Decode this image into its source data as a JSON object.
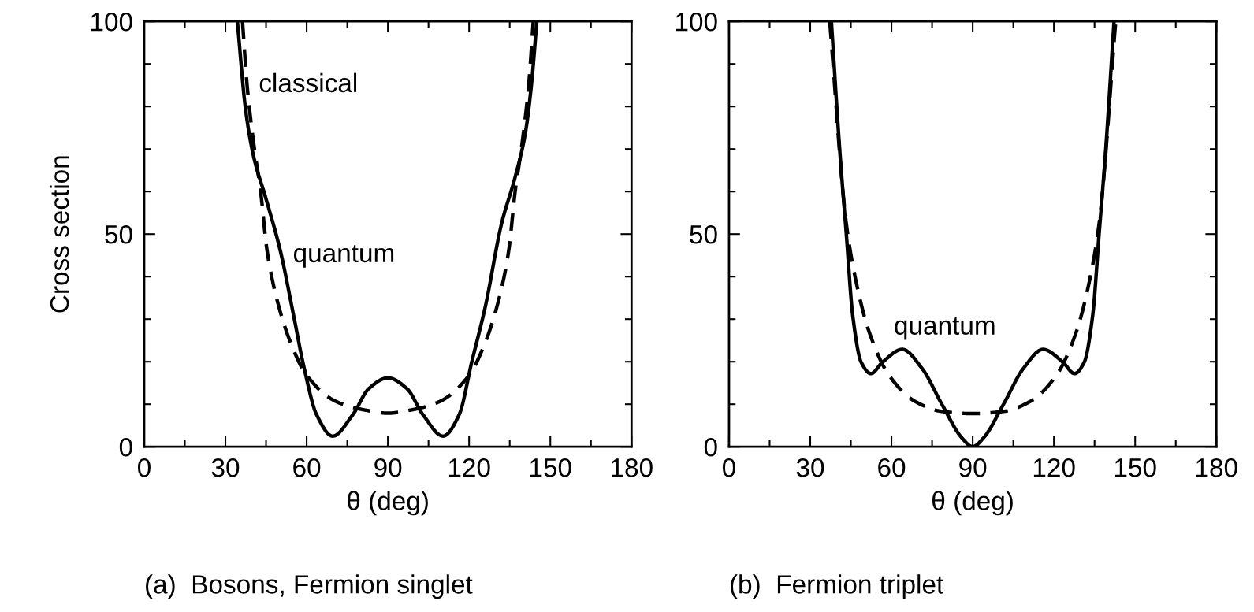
{
  "chart_data": [
    {
      "type": "line",
      "title": "(a)  Bosons, Fermion singlet",
      "xlabel": "θ (deg)",
      "ylabel": "Cross section",
      "xlim": [
        0,
        180
      ],
      "ylim": [
        0,
        100
      ],
      "xticks": [
        0,
        {
          "value": 15,
          "label": null
        },
        30,
        {
          "value": 45,
          "label": null
        },
        60,
        {
          "value": 75,
          "label": null
        },
        90,
        {
          "value": 105,
          "label": null
        },
        120,
        {
          "value": 135,
          "label": null
        },
        150,
        {
          "value": 165,
          "label": null
        },
        180
      ],
      "yticks": [
        0,
        {
          "value": 10,
          "label": null
        },
        {
          "value": 20,
          "label": null
        },
        {
          "value": 30,
          "label": null
        },
        {
          "value": 40,
          "label": null
        },
        50,
        {
          "value": 60,
          "label": null
        },
        {
          "value": 70,
          "label": null
        },
        {
          "value": 80,
          "label": null
        },
        {
          "value": 90,
          "label": null
        },
        100
      ],
      "grid": false,
      "legend": false,
      "annotations": [
        "classical",
        "quantum"
      ],
      "series": [
        {
          "color": "#000000",
          "line_style": "solid",
          "x": [
            34.4,
            37.5,
            40.5,
            44.8,
            50.3,
            55.2,
            58.9,
            63.7,
            69.6,
            77,
            83,
            90,
            97,
            103,
            110.4,
            116.3,
            121,
            126,
            132,
            137,
            140.7,
            143,
            145
          ],
          "values": [
            100,
            79,
            68,
            58.7,
            46,
            30.8,
            19,
            7.5,
            2.5,
            7.5,
            13.7,
            16.2,
            13.7,
            7.5,
            2.5,
            7.5,
            20,
            33,
            52.5,
            63.4,
            73.5,
            85,
            100
          ]
        },
        {
          "color": "#000000",
          "line_style": "dashed",
          "x": [
            36.3,
            38,
            40.5,
            43,
            45.4,
            49,
            54,
            60,
            71,
            81,
            90,
            99,
            109,
            120,
            126,
            131,
            134.6,
            137,
            139.5,
            142,
            143.7
          ],
          "values": [
            100,
            85,
            71,
            60,
            46,
            34.7,
            24.6,
            16.8,
            10.6,
            8.7,
            7.9,
            8.7,
            10.6,
            16.8,
            24.6,
            34.7,
            46,
            60,
            71,
            85,
            100
          ]
        }
      ]
    },
    {
      "type": "line",
      "title": "(b)  Fermion triplet",
      "xlabel": "θ (deg)",
      "xlim": [
        0,
        180
      ],
      "ylim": [
        0,
        100
      ],
      "xticks": [
        0,
        {
          "value": 15,
          "label": null
        },
        30,
        {
          "value": 45,
          "label": null
        },
        60,
        {
          "value": 75,
          "label": null
        },
        90,
        {
          "value": 105,
          "label": null
        },
        120,
        {
          "value": 135,
          "label": null
        },
        150,
        {
          "value": 165,
          "label": null
        },
        180
      ],
      "yticks": [
        0,
        {
          "value": 10,
          "label": null
        },
        {
          "value": 20,
          "label": null
        },
        {
          "value": 30,
          "label": null
        },
        {
          "value": 40,
          "label": null
        },
        50,
        {
          "value": 60,
          "label": null
        },
        {
          "value": 70,
          "label": null
        },
        {
          "value": 80,
          "label": null
        },
        {
          "value": 90,
          "label": null
        },
        100
      ],
      "grid": false,
      "legend": false,
      "annotations": [
        "quantum"
      ],
      "series": [
        {
          "color": "#000000",
          "line_style": "solid",
          "x": [
            37.8,
            40.9,
            43.3,
            45.7,
            48.8,
            52.4,
            56.7,
            64,
            71.3,
            78.7,
            86,
            90,
            94,
            101.3,
            108.7,
            116,
            123.3,
            127.6,
            131.2,
            134.3,
            136.7,
            139.1,
            142.2
          ],
          "values": [
            100,
            69.6,
            50.2,
            30.8,
            19.9,
            17.2,
            19.9,
            22.9,
            18.4,
            9.9,
            2.1,
            0,
            2.1,
            9.9,
            18.4,
            22.9,
            19.9,
            17.2,
            19.9,
            30.8,
            50.2,
            69.6,
            100
          ]
        },
        {
          "color": "#000000",
          "line_style": "dashed",
          "x": [
            37.2,
            43.3,
            47,
            51.8,
            59.1,
            68.9,
            78.7,
            90,
            101.3,
            111.1,
            120.9,
            128.2,
            133,
            136.7,
            142.8
          ],
          "values": [
            100,
            52.5,
            38.6,
            26.9,
            16.8,
            10.6,
            8.3,
            7.8,
            8.3,
            10.6,
            16.8,
            26.9,
            38.6,
            52.5,
            100
          ]
        }
      ]
    }
  ]
}
